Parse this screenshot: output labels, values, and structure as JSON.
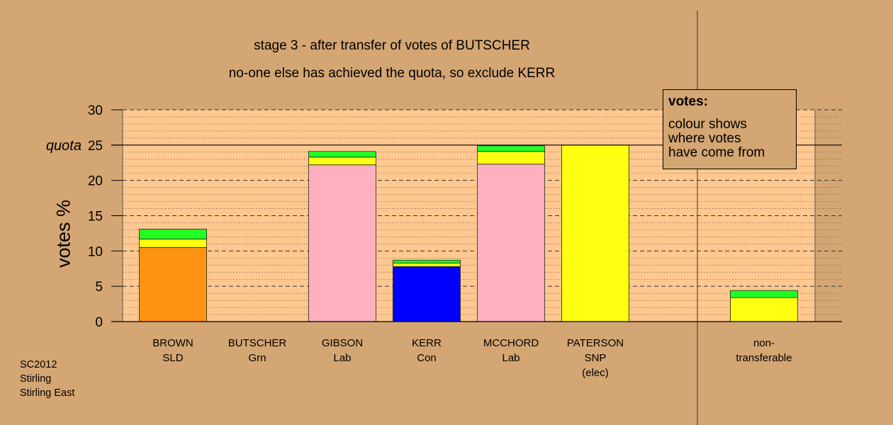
{
  "chart_data": {
    "type": "bar",
    "stacked": true,
    "title": "stage 3 - after transfer of votes of BUTSCHER",
    "subtitle": "no-one else has achieved the quota, so exclude KERR",
    "ylabel": "votes %",
    "ylim": [
      0,
      30
    ],
    "yticks": [
      0,
      5,
      10,
      15,
      20,
      25,
      30
    ],
    "quota_label": "quota",
    "quota": 25,
    "grid": true,
    "categories": [
      {
        "name": "BROWN",
        "party": "SLD",
        "note": ""
      },
      {
        "name": "BUTSCHER",
        "party": "Grn",
        "note": ""
      },
      {
        "name": "GIBSON",
        "party": "Lab",
        "note": ""
      },
      {
        "name": "KERR",
        "party": "Con",
        "note": ""
      },
      {
        "name": "MCCHORD",
        "party": "Lab",
        "note": ""
      },
      {
        "name": "PATERSON",
        "party": "SNP",
        "note": "(elec)"
      },
      {
        "name": "non-",
        "party": "transferable",
        "note": ""
      }
    ],
    "bars": [
      {
        "category": "BROWN",
        "segments": [
          {
            "value": 10.5,
            "color": "#ff9411"
          },
          {
            "value": 1.2,
            "color": "#ffff11"
          },
          {
            "value": 1.4,
            "color": "#22ff22"
          }
        ]
      },
      {
        "category": "BUTSCHER",
        "segments": []
      },
      {
        "category": "GIBSON",
        "segments": [
          {
            "value": 22.2,
            "color": "#ffb0c0"
          },
          {
            "value": 1.1,
            "color": "#ffff11"
          },
          {
            "value": 0.8,
            "color": "#22ff22"
          }
        ]
      },
      {
        "category": "KERR",
        "segments": [
          {
            "value": 7.8,
            "color": "#0000ff"
          },
          {
            "value": 0.5,
            "color": "#ffff11"
          },
          {
            "value": 0.4,
            "color": "#22ff22"
          }
        ]
      },
      {
        "category": "MCCHORD",
        "segments": [
          {
            "value": 22.3,
            "color": "#ffb0c0"
          },
          {
            "value": 1.8,
            "color": "#ffff11"
          },
          {
            "value": 0.8,
            "color": "#22ff22"
          }
        ]
      },
      {
        "category": "PATERSON",
        "segments": [
          {
            "value": 25.0,
            "color": "#ffff11"
          }
        ]
      },
      {
        "category": "non-transferable",
        "segments": [
          {
            "value": 3.4,
            "color": "#ffff11"
          },
          {
            "value": 1.0,
            "color": "#22ff22"
          }
        ]
      }
    ],
    "legend": {
      "title": "votes:",
      "lines": [
        "colour shows",
        "where votes",
        "have come from"
      ],
      "position": "top-right"
    },
    "colors": {
      "background": "#d4a673",
      "plot_background": "#ffc890"
    }
  },
  "footer": {
    "lines": [
      "SC2012",
      "Stirling",
      "Stirling East"
    ]
  }
}
